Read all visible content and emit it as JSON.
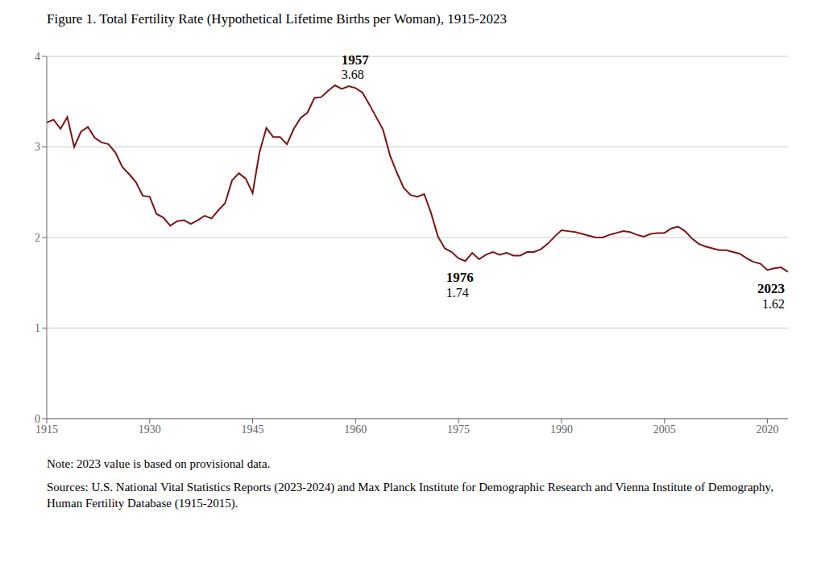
{
  "chart_data": {
    "type": "line",
    "title": "Figure 1. Total Fertility Rate (Hypothetical Lifetime Births per Woman), 1915-2023",
    "note": "Note: 2023 value is based on provisional data.",
    "source": "Sources: U.S. National Vital Statistics Reports (2023-2024) and Max Planck Institute for Demographic Research and Vienna Institute of Demography, Human Fertility Database (1915-2015).",
    "x": [
      1915,
      1916,
      1917,
      1918,
      1919,
      1920,
      1921,
      1922,
      1923,
      1924,
      1925,
      1926,
      1927,
      1928,
      1929,
      1930,
      1931,
      1932,
      1933,
      1934,
      1935,
      1936,
      1937,
      1938,
      1939,
      1940,
      1941,
      1942,
      1943,
      1944,
      1945,
      1946,
      1947,
      1948,
      1949,
      1950,
      1951,
      1952,
      1953,
      1954,
      1955,
      1956,
      1957,
      1958,
      1959,
      1960,
      1961,
      1962,
      1963,
      1964,
      1965,
      1966,
      1967,
      1968,
      1969,
      1970,
      1971,
      1972,
      1973,
      1974,
      1975,
      1976,
      1977,
      1978,
      1979,
      1980,
      1981,
      1982,
      1983,
      1984,
      1985,
      1986,
      1987,
      1988,
      1989,
      1990,
      1991,
      1992,
      1993,
      1994,
      1995,
      1996,
      1997,
      1998,
      1999,
      2000,
      2001,
      2002,
      2003,
      2004,
      2005,
      2006,
      2007,
      2008,
      2009,
      2010,
      2011,
      2012,
      2013,
      2014,
      2015,
      2016,
      2017,
      2018,
      2019,
      2020,
      2021,
      2022,
      2023
    ],
    "values": [
      3.27,
      3.3,
      3.2,
      3.33,
      3.0,
      3.17,
      3.22,
      3.1,
      3.05,
      3.03,
      2.94,
      2.78,
      2.7,
      2.61,
      2.46,
      2.45,
      2.26,
      2.22,
      2.13,
      2.18,
      2.19,
      2.15,
      2.19,
      2.24,
      2.21,
      2.3,
      2.38,
      2.63,
      2.71,
      2.65,
      2.49,
      2.94,
      3.21,
      3.11,
      3.11,
      3.03,
      3.2,
      3.32,
      3.38,
      3.54,
      3.55,
      3.62,
      3.68,
      3.64,
      3.67,
      3.65,
      3.6,
      3.47,
      3.33,
      3.19,
      2.91,
      2.72,
      2.55,
      2.47,
      2.45,
      2.48,
      2.27,
      2.01,
      1.88,
      1.84,
      1.77,
      1.74,
      1.83,
      1.76,
      1.81,
      1.84,
      1.81,
      1.83,
      1.8,
      1.8,
      1.84,
      1.84,
      1.87,
      1.93,
      2.01,
      2.08,
      2.07,
      2.06,
      2.04,
      2.02,
      2.0,
      2.0,
      2.03,
      2.05,
      2.07,
      2.06,
      2.03,
      2.01,
      2.04,
      2.05,
      2.05,
      2.1,
      2.12,
      2.07,
      1.99,
      1.93,
      1.9,
      1.88,
      1.86,
      1.86,
      1.84,
      1.82,
      1.77,
      1.73,
      1.71,
      1.64,
      1.66,
      1.67,
      1.62
    ],
    "color": "#7B1515",
    "xlim": [
      1915,
      2023
    ],
    "xticks": [
      1915,
      1930,
      1945,
      1960,
      1975,
      1990,
      2005,
      2020
    ],
    "ylim": [
      0,
      4
    ],
    "yticks": [
      0,
      1,
      2,
      3,
      4
    ],
    "grid": true,
    "annotations": [
      {
        "x": 1957,
        "y": 3.68
      },
      {
        "x": 1976,
        "y": 1.74
      },
      {
        "x": 2023,
        "y": 1.62
      }
    ]
  }
}
